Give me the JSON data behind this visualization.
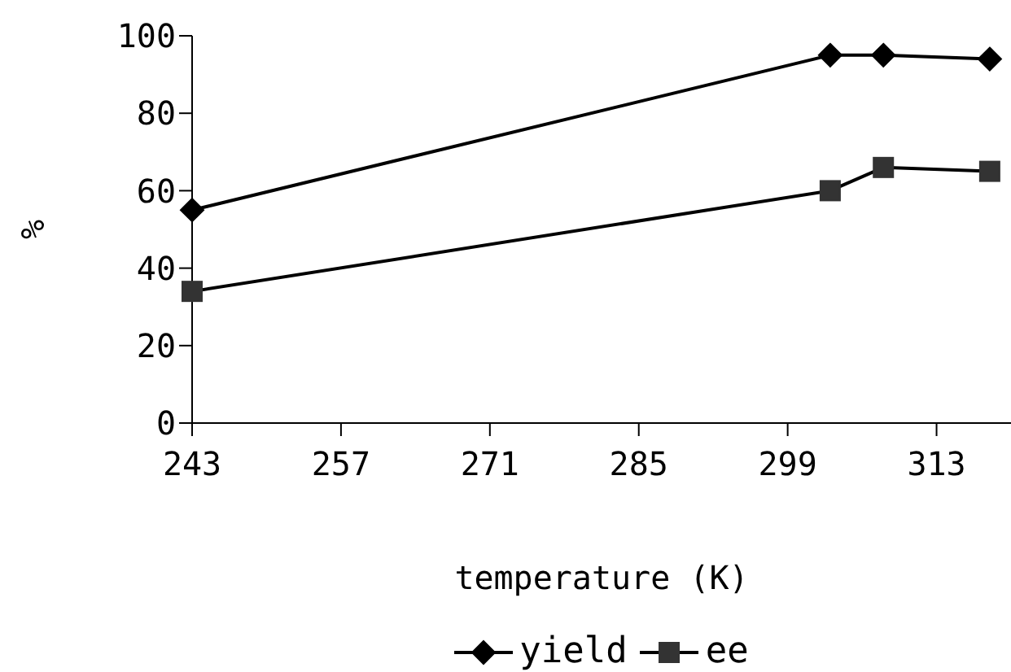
{
  "chart_data": {
    "type": "line",
    "xlabel": "temperature (K)",
    "ylabel": "%",
    "x": [
      243,
      303,
      308,
      318
    ],
    "series": [
      {
        "name": "yield",
        "color": "#000000",
        "marker": "diamond",
        "values": [
          55,
          95,
          95,
          94
        ]
      },
      {
        "name": "ee",
        "color": "#333333",
        "marker": "square",
        "values": [
          34,
          60,
          66,
          65
        ]
      }
    ],
    "xlim": [
      243,
      320
    ],
    "xticks": [
      243,
      257,
      271,
      285,
      299,
      313
    ],
    "ylim": [
      0,
      100
    ],
    "yticks": [
      0,
      20,
      40,
      60,
      80,
      100
    ],
    "grid": false,
    "legend": "bottom",
    "line_style": "solid"
  }
}
